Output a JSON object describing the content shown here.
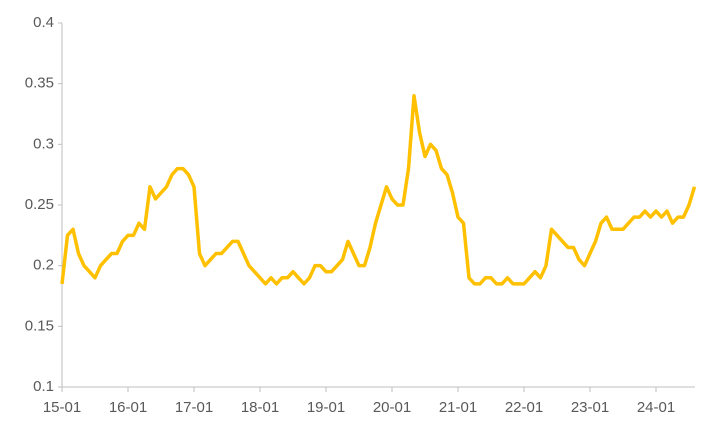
{
  "chart_data": {
    "type": "line",
    "x": [
      "15-01",
      "15-02",
      "15-03",
      "15-04",
      "15-05",
      "15-06",
      "15-07",
      "15-08",
      "15-09",
      "15-10",
      "15-11",
      "15-12",
      "16-01",
      "16-02",
      "16-03",
      "16-04",
      "16-05",
      "16-06",
      "16-07",
      "16-08",
      "16-09",
      "16-10",
      "16-11",
      "16-12",
      "17-01",
      "17-02",
      "17-03",
      "17-04",
      "17-05",
      "17-06",
      "17-07",
      "17-08",
      "17-09",
      "17-10",
      "17-11",
      "17-12",
      "18-01",
      "18-02",
      "18-03",
      "18-04",
      "18-05",
      "18-06",
      "18-07",
      "18-08",
      "18-09",
      "18-10",
      "18-11",
      "18-12",
      "19-01",
      "19-02",
      "19-03",
      "19-04",
      "19-05",
      "19-06",
      "19-07",
      "19-08",
      "19-09",
      "19-10",
      "19-11",
      "19-12",
      "20-01",
      "20-02",
      "20-03",
      "20-04",
      "20-05",
      "20-06",
      "20-07",
      "20-08",
      "20-09",
      "20-10",
      "20-11",
      "20-12",
      "21-01",
      "21-02",
      "21-03",
      "21-04",
      "21-05",
      "21-06",
      "21-07",
      "21-08",
      "21-09",
      "21-10",
      "21-11",
      "21-12",
      "22-01",
      "22-02",
      "22-03",
      "22-04",
      "22-05",
      "22-06",
      "22-07",
      "22-08",
      "22-09",
      "22-10",
      "22-11",
      "22-12",
      "23-01",
      "23-02",
      "23-03",
      "23-04",
      "23-05",
      "23-06",
      "23-07",
      "23-08",
      "23-09",
      "23-10",
      "23-11",
      "23-12",
      "24-01",
      "24-02",
      "24-03",
      "24-04",
      "24-05",
      "24-06",
      "24-07",
      "24-08"
    ],
    "series": [
      {
        "color": "#FFC000",
        "values": [
          0.185,
          0.225,
          0.23,
          0.21,
          0.2,
          0.195,
          0.19,
          0.2,
          0.205,
          0.21,
          0.21,
          0.22,
          0.225,
          0.225,
          0.235,
          0.23,
          0.265,
          0.255,
          0.26,
          0.265,
          0.275,
          0.28,
          0.28,
          0.275,
          0.265,
          0.21,
          0.2,
          0.205,
          0.21,
          0.21,
          0.215,
          0.22,
          0.22,
          0.21,
          0.2,
          0.195,
          0.19,
          0.185,
          0.19,
          0.185,
          0.19,
          0.19,
          0.195,
          0.19,
          0.185,
          0.19,
          0.2,
          0.2,
          0.195,
          0.195,
          0.2,
          0.205,
          0.22,
          0.21,
          0.2,
          0.2,
          0.215,
          0.235,
          0.25,
          0.265,
          0.255,
          0.25,
          0.25,
          0.28,
          0.34,
          0.31,
          0.29,
          0.3,
          0.295,
          0.28,
          0.275,
          0.26,
          0.24,
          0.235,
          0.19,
          0.185,
          0.185,
          0.19,
          0.19,
          0.185,
          0.185,
          0.19,
          0.185,
          0.185,
          0.185,
          0.19,
          0.195,
          0.19,
          0.2,
          0.23,
          0.225,
          0.22,
          0.215,
          0.215,
          0.205,
          0.2,
          0.21,
          0.22,
          0.235,
          0.24,
          0.23,
          0.23,
          0.23,
          0.235,
          0.24,
          0.24,
          0.245,
          0.24,
          0.245,
          0.24,
          0.245,
          0.235,
          0.24,
          0.24,
          0.25,
          0.265
        ]
      }
    ],
    "ylim": [
      0.1,
      0.4
    ],
    "yticks": [
      0.1,
      0.15,
      0.2,
      0.25,
      0.3,
      0.35,
      0.4
    ],
    "xticks": [
      "15-01",
      "16-01",
      "17-01",
      "18-01",
      "19-01",
      "20-01",
      "21-01",
      "22-01",
      "23-01",
      "24-01"
    ]
  }
}
